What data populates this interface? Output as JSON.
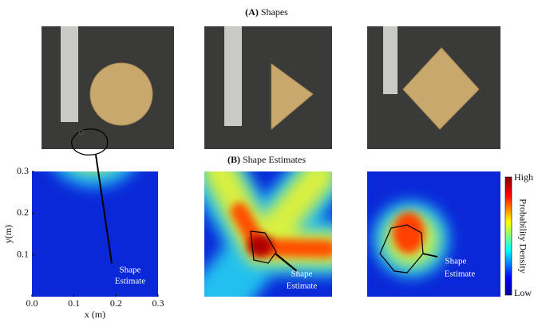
{
  "panel_a": {
    "label": "(A)",
    "title": "Shapes"
  },
  "panel_b": {
    "label": "(B)",
    "title": "Shape Estimates"
  },
  "axes": {
    "xlabel": "x (m)",
    "ylabel": "y(m)",
    "xlim": [
      0,
      0.3
    ],
    "ylim": [
      0,
      0.3
    ],
    "xticks": [
      {
        "value": 0,
        "label": "0.0"
      },
      0.1,
      0.2,
      0.3
    ],
    "yticks": [
      0.1,
      0.2,
      0.3
    ]
  },
  "annotations": [
    [
      "Shape",
      "Estimate"
    ],
    [
      "Shape",
      "Estimate"
    ],
    [
      "Shape",
      "Estimate"
    ]
  ],
  "colorbar": {
    "high": "High",
    "label": "Probability Density",
    "low": "Low"
  }
}
